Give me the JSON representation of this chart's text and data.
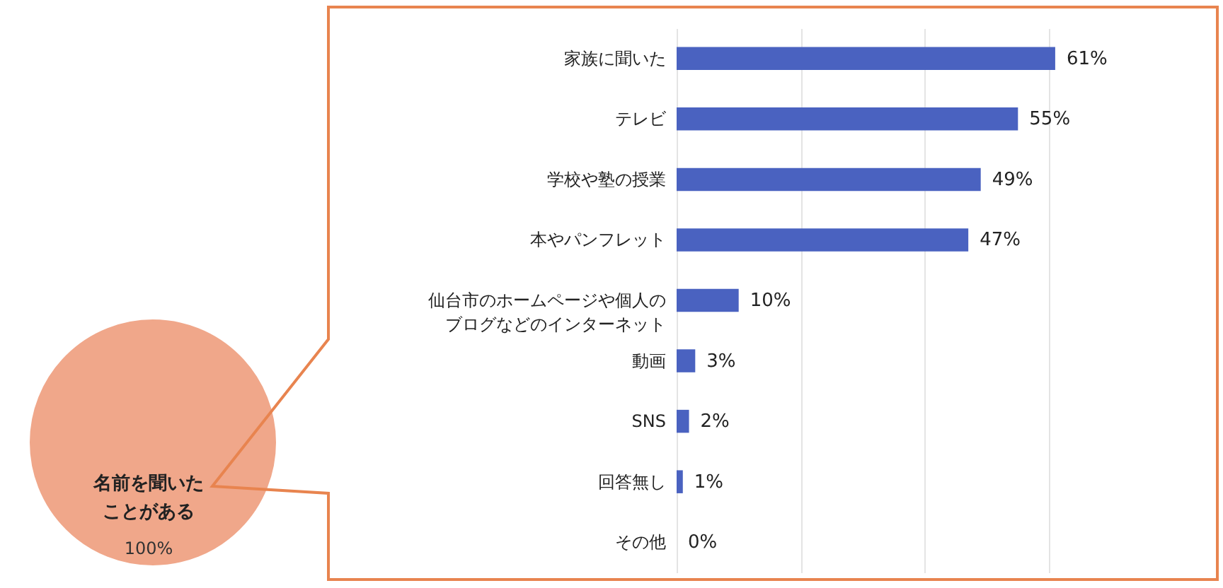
{
  "chart_data": [
    {
      "type": "pie",
      "categories": [
        "名前を聞いたことがある"
      ],
      "values": [
        100
      ],
      "colors": [
        "#f0a78a"
      ],
      "value_labels": [
        "100%"
      ]
    },
    {
      "type": "bar",
      "orientation": "horizontal",
      "categories": [
        "家族に聞いた",
        "テレビ",
        "学校や塾の授業",
        "本やパンフレット",
        "仙台市のホームページや個人のブログなどのインターネット",
        "動画",
        "SNS",
        "回答無し",
        "その他"
      ],
      "values": [
        61,
        55,
        49,
        47,
        10,
        3,
        2,
        1,
        0
      ],
      "color": "#4a62c0",
      "value_labels": [
        "61%",
        "55%",
        "49%",
        "47%",
        "10%",
        "3%",
        "2%",
        "1%",
        "0%"
      ],
      "xticks": [
        {
          "value": 0,
          "label": null
        },
        {
          "value": 20,
          "label": null
        },
        {
          "value": 40,
          "label": null
        },
        {
          "value": 60,
          "label": null
        }
      ],
      "grid": "x",
      "tick_labels": "y"
    }
  ]
}
